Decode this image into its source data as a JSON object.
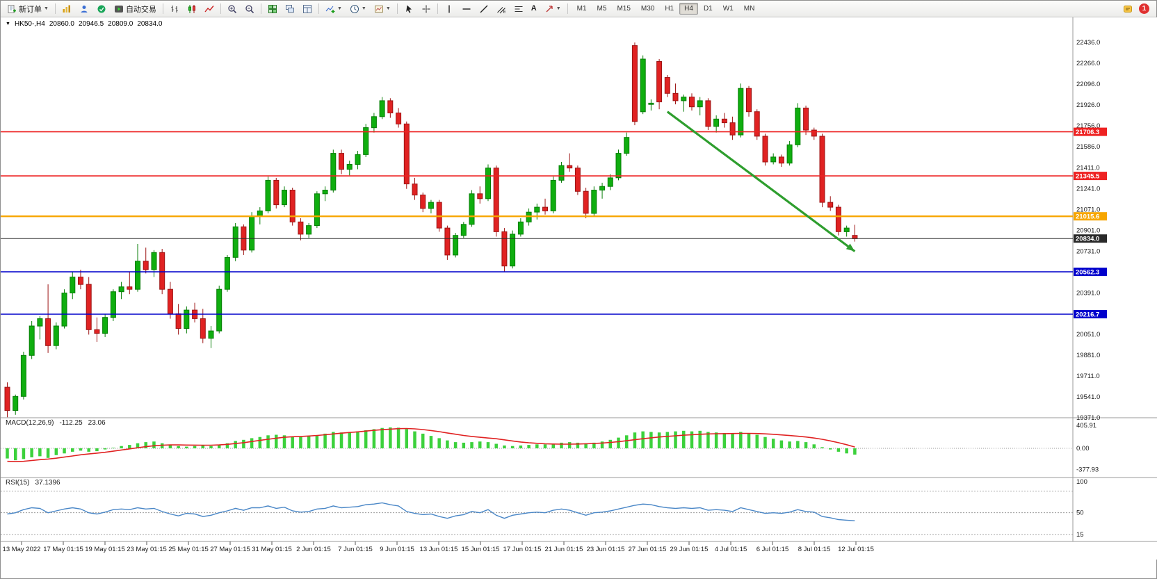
{
  "toolbar": {
    "new_order": {
      "label": "新订单"
    },
    "auto_trading": {
      "label": "自动交易"
    },
    "text_tool_label": "A",
    "timeframes": [
      "M1",
      "M5",
      "M15",
      "M30",
      "H1",
      "H4",
      "D1",
      "W1",
      "MN"
    ],
    "active_timeframe": "H4",
    "notification_count": "1"
  },
  "chart_header": {
    "symbol_period": "HK50-,H4",
    "open": "20860.0",
    "high": "20946.5",
    "low": "20809.0",
    "close": "20834.0"
  },
  "chart_data": {
    "type": "candlestick",
    "symbol": "HK50-",
    "timeframe": "H4",
    "price_axis": {
      "min": 19371.0,
      "max": 22436.0,
      "tick_labels": [
        "22436.0",
        "22266.0",
        "22096.0",
        "21926.0",
        "21756.0",
        "21586.0",
        "21411.0",
        "21241.0",
        "21071.0",
        "20901.0",
        "20731.0",
        "20561.0",
        "20391.0",
        "20221.0",
        "20051.0",
        "19881.0",
        "19711.0",
        "19541.0",
        "19371.0"
      ]
    },
    "time_axis_labels": [
      "13 May 2022",
      "17 May 01:15",
      "19 May 01:15",
      "23 May 01:15",
      "25 May 01:15",
      "27 May 01:15",
      "31 May 01:15",
      "2 Jun 01:15",
      "7 Jun 01:15",
      "9 Jun 01:15",
      "13 Jun 01:15",
      "15 Jun 01:15",
      "17 Jun 01:15",
      "21 Jun 01:15",
      "23 Jun 01:15",
      "27 Jun 01:15",
      "29 Jun 01:15",
      "4 Jul 01:15",
      "6 Jul 01:15",
      "8 Jul 01:15",
      "12 Jul 01:15"
    ],
    "candle_up_color": "#0fae0f",
    "candle_down_color": "#e02222",
    "candles_ohlc": [
      [
        19620,
        19660,
        19375,
        19430
      ],
      [
        19430,
        19560,
        19395,
        19545
      ],
      [
        19545,
        19910,
        19520,
        19880
      ],
      [
        19880,
        20160,
        19850,
        20120
      ],
      [
        20120,
        20200,
        20010,
        20180
      ],
      [
        20180,
        20460,
        19900,
        19960
      ],
      [
        19960,
        20150,
        19930,
        20120
      ],
      [
        20120,
        20420,
        20100,
        20390
      ],
      [
        20390,
        20560,
        20340,
        20520
      ],
      [
        20520,
        20580,
        20420,
        20460
      ],
      [
        20460,
        20520,
        20050,
        20090
      ],
      [
        20090,
        20190,
        19990,
        20060
      ],
      [
        20060,
        20220,
        20030,
        20190
      ],
      [
        20190,
        20420,
        20160,
        20400
      ],
      [
        20400,
        20480,
        20340,
        20440
      ],
      [
        20440,
        20560,
        20380,
        20420
      ],
      [
        20420,
        20790,
        20400,
        20650
      ],
      [
        20650,
        20760,
        20550,
        20580
      ],
      [
        20580,
        20740,
        20520,
        20720
      ],
      [
        20720,
        20750,
        20380,
        20420
      ],
      [
        20420,
        20480,
        20180,
        20220
      ],
      [
        20220,
        20300,
        20050,
        20100
      ],
      [
        20100,
        20280,
        20060,
        20250
      ],
      [
        20250,
        20310,
        20150,
        20180
      ],
      [
        20180,
        20260,
        19980,
        20020
      ],
      [
        20020,
        20120,
        19940,
        20080
      ],
      [
        20080,
        20450,
        20060,
        20420
      ],
      [
        20420,
        20700,
        20400,
        20680
      ],
      [
        20680,
        20960,
        20650,
        20930
      ],
      [
        20930,
        20950,
        20700,
        20740
      ],
      [
        20740,
        21050,
        20720,
        21020
      ],
      [
        21020,
        21090,
        20950,
        21060
      ],
      [
        21060,
        21340,
        21040,
        21310
      ],
      [
        21310,
        21330,
        21080,
        21110
      ],
      [
        21110,
        21260,
        21090,
        21230
      ],
      [
        21230,
        21250,
        20940,
        20970
      ],
      [
        20970,
        21000,
        20820,
        20870
      ],
      [
        20870,
        20960,
        20840,
        20940
      ],
      [
        20940,
        21220,
        20920,
        21200
      ],
      [
        21200,
        21260,
        21140,
        21230
      ],
      [
        21230,
        21560,
        21210,
        21530
      ],
      [
        21530,
        21560,
        21360,
        21400
      ],
      [
        21400,
        21470,
        21350,
        21440
      ],
      [
        21440,
        21550,
        21400,
        21520
      ],
      [
        21520,
        21770,
        21500,
        21740
      ],
      [
        21740,
        21860,
        21700,
        21830
      ],
      [
        21830,
        21990,
        21810,
        21960
      ],
      [
        21960,
        21980,
        21820,
        21860
      ],
      [
        21860,
        21900,
        21740,
        21770
      ],
      [
        21770,
        21790,
        21240,
        21280
      ],
      [
        21280,
        21330,
        21150,
        21190
      ],
      [
        21190,
        21210,
        21050,
        21080
      ],
      [
        21080,
        21150,
        21040,
        21130
      ],
      [
        21130,
        21150,
        20890,
        20920
      ],
      [
        20920,
        20940,
        20660,
        20700
      ],
      [
        20700,
        20880,
        20680,
        20860
      ],
      [
        20860,
        20970,
        20840,
        20950
      ],
      [
        20950,
        21230,
        20930,
        21200
      ],
      [
        21200,
        21260,
        21120,
        21160
      ],
      [
        21160,
        21440,
        21140,
        21410
      ],
      [
        21410,
        21430,
        20850,
        20890
      ],
      [
        20890,
        20920,
        20560,
        20610
      ],
      [
        20610,
        20900,
        20590,
        20870
      ],
      [
        20870,
        21000,
        20850,
        20970
      ],
      [
        20970,
        21080,
        20940,
        21050
      ],
      [
        21050,
        21120,
        20990,
        21090
      ],
      [
        21090,
        21160,
        21030,
        21060
      ],
      [
        21060,
        21340,
        21040,
        21310
      ],
      [
        21310,
        21460,
        21290,
        21430
      ],
      [
        21430,
        21530,
        21380,
        21410
      ],
      [
        21410,
        21430,
        21190,
        21220
      ],
      [
        21220,
        21250,
        21000,
        21040
      ],
      [
        21040,
        21260,
        21020,
        21230
      ],
      [
        21230,
        21290,
        21160,
        21260
      ],
      [
        21260,
        21360,
        21230,
        21330
      ],
      [
        21330,
        21560,
        21310,
        21530
      ],
      [
        21530,
        21700,
        21510,
        21660
      ],
      [
        22410,
        22435,
        21760,
        21790
      ],
      [
        21870,
        22330,
        21850,
        22300
      ],
      [
        21930,
        21970,
        21880,
        21940
      ],
      [
        22280,
        22300,
        21890,
        21950
      ],
      [
        22150,
        22170,
        21990,
        22020
      ],
      [
        22020,
        22100,
        21930,
        21960
      ],
      [
        21960,
        22010,
        21870,
        21990
      ],
      [
        21990,
        22020,
        21880,
        21910
      ],
      [
        21910,
        21990,
        21840,
        21960
      ],
      [
        21960,
        21980,
        21720,
        21750
      ],
      [
        21750,
        21840,
        21700,
        21810
      ],
      [
        21810,
        21860,
        21740,
        21780
      ],
      [
        21780,
        21830,
        21640,
        21680
      ],
      [
        21680,
        22100,
        21660,
        22060
      ],
      [
        22060,
        22080,
        21830,
        21870
      ],
      [
        21870,
        21890,
        21640,
        21670
      ],
      [
        21670,
        21690,
        21430,
        21460
      ],
      [
        21460,
        21530,
        21440,
        21500
      ],
      [
        21500,
        21520,
        21420,
        21450
      ],
      [
        21450,
        21630,
        21430,
        21600
      ],
      [
        21600,
        21940,
        21580,
        21900
      ],
      [
        21900,
        21920,
        21680,
        21720
      ],
      [
        21720,
        21740,
        21640,
        21670
      ],
      [
        21670,
        21690,
        21090,
        21130
      ],
      [
        21130,
        21180,
        21060,
        21090
      ],
      [
        21090,
        21110,
        20860,
        20890
      ],
      [
        20890,
        20940,
        20850,
        20920
      ],
      [
        20860,
        20946.5,
        20809,
        20834
      ]
    ],
    "horizontal_lines": [
      {
        "price": 21706.3,
        "label": "21706.3",
        "color": "#ee2222",
        "width": 1.6
      },
      {
        "price": 21345.5,
        "label": "21345.5",
        "color": "#ee2222",
        "width": 1.6
      },
      {
        "price": 21015.6,
        "label": "21015.6",
        "color": "#f7a600",
        "width": 2.4
      },
      {
        "price": 20562.3,
        "label": "20562.3",
        "color": "#0000cc",
        "width": 1.6
      },
      {
        "price": 20216.7,
        "label": "20216.7",
        "color": "#0000cc",
        "width": 1.6
      }
    ],
    "current_price_line": {
      "price": 20834.0,
      "label": "20834.0",
      "color": "#2a2a2a"
    },
    "trend_arrow": {
      "from": {
        "candle": 81,
        "price": 21870
      },
      "to": {
        "candle": 104,
        "price": 20730
      },
      "color": "#2e9e2e"
    },
    "indicators": {
      "macd": {
        "title": "MACD(12,26,9)",
        "main_value": "-112.25",
        "signal_value": "23.06",
        "axis_labels": [
          "405.91",
          "0.00",
          "-377.93"
        ],
        "histogram_color": "#3cd13c",
        "signal_color": "#e02222",
        "histogram": [
          -180,
          -210,
          -190,
          -160,
          -140,
          -170,
          -120,
          -90,
          -60,
          -40,
          -60,
          -50,
          -20,
          10,
          40,
          60,
          90,
          110,
          120,
          90,
          60,
          40,
          30,
          40,
          50,
          40,
          60,
          90,
          130,
          150,
          180,
          200,
          230,
          240,
          230,
          210,
          200,
          210,
          230,
          260,
          290,
          280,
          290,
          300,
          320,
          340,
          360,
          370,
          365,
          340,
          300,
          260,
          220,
          180,
          140,
          110,
          100,
          110,
          120,
          110,
          80,
          50,
          40,
          50,
          60,
          70,
          70,
          80,
          100,
          110,
          100,
          90,
          100,
          120,
          150,
          190,
          230,
          280,
          300,
          290,
          280,
          290,
          300,
          310,
          300,
          310,
          290,
          280,
          270,
          260,
          290,
          270,
          240,
          200,
          170,
          140,
          120,
          130,
          110,
          70,
          20,
          -20,
          -60,
          -90,
          -112.3
        ],
        "signal": [
          -230,
          -235,
          -230,
          -215,
          -200,
          -190,
          -175,
          -155,
          -135,
          -115,
          -100,
          -85,
          -70,
          -50,
          -30,
          -10,
          10,
          30,
          45,
          55,
          60,
          60,
          58,
          56,
          55,
          55,
          60,
          70,
          85,
          100,
          120,
          140,
          160,
          180,
          195,
          205,
          210,
          218,
          228,
          240,
          255,
          268,
          280,
          292,
          305,
          318,
          330,
          340,
          348,
          350,
          345,
          332,
          315,
          295,
          272,
          250,
          228,
          210,
          195,
          182,
          170,
          150,
          130,
          112,
          98,
          88,
          80,
          76,
          74,
          74,
          76,
          80,
          86,
          94,
          104,
          118,
          134,
          152,
          170,
          186,
          200,
          212,
          222,
          232,
          240,
          248,
          254,
          258,
          260,
          262,
          264,
          264,
          262,
          256,
          248,
          238,
          226,
          214,
          200,
          182,
          160,
          132,
          100,
          64,
          23.1
        ]
      },
      "rsi": {
        "title": "RSI(15)",
        "value": "37.1396",
        "axis_labels": [
          "100",
          "50",
          "15"
        ],
        "levels": [
          85,
          50,
          15
        ],
        "line_color": "#4a87c7",
        "values": [
          48,
          50,
          55,
          58,
          57,
          50,
          53,
          56,
          58,
          56,
          50,
          48,
          51,
          55,
          56,
          55,
          58,
          56,
          57,
          52,
          48,
          45,
          49,
          48,
          44,
          46,
          50,
          53,
          57,
          54,
          58,
          58,
          61,
          57,
          59,
          53,
          51,
          52,
          56,
          57,
          61,
          58,
          59,
          60,
          63,
          64,
          66,
          63,
          61,
          52,
          49,
          47,
          48,
          44,
          41,
          45,
          47,
          52,
          50,
          55,
          46,
          41,
          46,
          48,
          50,
          51,
          50,
          54,
          56,
          54,
          50,
          46,
          50,
          51,
          53,
          56,
          59,
          62,
          64,
          63,
          60,
          58,
          57,
          58,
          57,
          58,
          54,
          55,
          54,
          52,
          58,
          55,
          52,
          49,
          50,
          49,
          51,
          55,
          52,
          51,
          44,
          42,
          39,
          38,
          37.1
        ]
      }
    }
  }
}
